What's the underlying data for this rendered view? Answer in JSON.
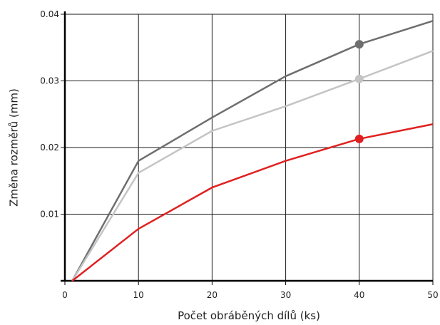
{
  "chart_data": {
    "type": "line",
    "title": "",
    "xlabel": "Počet obráběných dílů (ks)",
    "ylabel": "Změna rozměrů (mm)",
    "xlim": [
      0,
      50
    ],
    "ylim": [
      0,
      0.04
    ],
    "x_ticks": [
      0,
      10,
      20,
      30,
      40,
      50
    ],
    "y_ticks": [
      0.01,
      0.02,
      0.03,
      0.04
    ],
    "x_tick_labels": [
      "0",
      "10",
      "20",
      "30",
      "40",
      "50"
    ],
    "y_tick_labels": [
      "0.01",
      "0.02",
      "0.03",
      "0.04"
    ],
    "grid": true,
    "legend": "none",
    "series": [
      {
        "color": "#6e6e6e",
        "x": [
          1,
          10,
          20,
          30,
          40,
          50
        ],
        "y": [
          0,
          0.018,
          0.0245,
          0.0307,
          0.0355,
          0.039
        ],
        "marker_at_x": 40
      },
      {
        "color": "#c4c4c4",
        "x": [
          1,
          10,
          20,
          30,
          40,
          50
        ],
        "y": [
          0,
          0.0162,
          0.0225,
          0.0262,
          0.0303,
          0.0345
        ],
        "marker_at_x": 40
      },
      {
        "color": "#e02020",
        "x": [
          1,
          10,
          20,
          30,
          40,
          50
        ],
        "y": [
          0,
          0.0078,
          0.014,
          0.018,
          0.0213,
          0.0235
        ],
        "marker_at_x": 40
      }
    ]
  }
}
